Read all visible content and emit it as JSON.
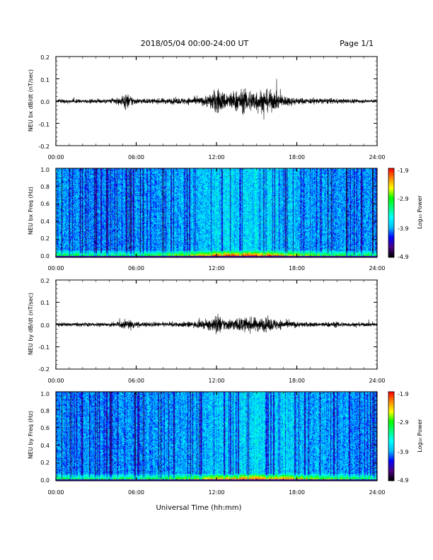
{
  "header": {
    "title": "2018/05/04  00:00-24:00 UT",
    "page": "Page 1/1"
  },
  "footer": {
    "xlabel": "Universal Time (hh:mm)"
  },
  "colors": {
    "trace": "#000000",
    "colormap": [
      "#000000",
      "#4b0082",
      "#0000ff",
      "#00bfff",
      "#00ffff",
      "#00ff7f",
      "#00ff00",
      "#ffff00",
      "#ff8c00",
      "#ff0000"
    ]
  },
  "chart_data": [
    {
      "type": "line",
      "ylabel": "NEU bx dB/dt (nT/sec)",
      "xlim": [
        "00:00",
        "24:00"
      ],
      "ylim": [
        -0.2,
        0.2
      ],
      "x_ticks": [
        "00:00",
        "06:00",
        "12:00",
        "18:00",
        "24:00"
      ],
      "y_ticks": [
        "0.2",
        "0.1",
        "0.0",
        "-0.1",
        "-0.2"
      ],
      "series": [
        {
          "x": [
            "00:00",
            "01:00",
            "02:00",
            "03:00",
            "04:00",
            "05:00",
            "05:15",
            "06:00",
            "07:00",
            "08:00",
            "09:00",
            "10:00",
            "11:00",
            "11:45",
            "12:00",
            "12:30",
            "13:00",
            "14:00",
            "15:00",
            "16:00",
            "17:00",
            "18:00",
            "19:00",
            "20:00",
            "21:00",
            "22:00",
            "23:00",
            "24:00"
          ],
          "amplitude": [
            0.008,
            0.008,
            0.008,
            0.009,
            0.01,
            0.02,
            0.035,
            0.012,
            0.01,
            0.012,
            0.013,
            0.015,
            0.018,
            0.04,
            0.06,
            0.04,
            0.04,
            0.05,
            0.05,
            0.045,
            0.025,
            0.015,
            0.012,
            0.012,
            0.01,
            0.01,
            0.008,
            0.008
          ]
        }
      ]
    },
    {
      "type": "heatmap",
      "ylabel": "NEU bx Freq (Hz)",
      "colorbar_label": "Log₁₀ Power",
      "xlim": [
        "00:00",
        "24:00"
      ],
      "ylim": [
        0.0,
        1.0
      ],
      "x_ticks": [
        "00:00",
        "06:00",
        "12:00",
        "18:00",
        "24:00"
      ],
      "y_ticks": [
        "1.0",
        "0.8",
        "0.6",
        "0.4",
        "0.2",
        "0.0"
      ],
      "color_range": [
        -4.9,
        -1.9
      ],
      "colorbar_ticks": [
        "-1.9",
        "-2.9",
        "-3.9",
        "-4.9"
      ],
      "low_freq_peak": {
        "freq_hz": 0.02,
        "max_log_power": -2.2,
        "peak_time": "14:00"
      }
    },
    {
      "type": "line",
      "ylabel": "NEU by dB/dt (nT/sec)",
      "xlim": [
        "00:00",
        "24:00"
      ],
      "ylim": [
        -0.2,
        0.2
      ],
      "x_ticks": [
        "00:00",
        "06:00",
        "12:00",
        "18:00",
        "24:00"
      ],
      "y_ticks": [
        "0.2",
        "0.1",
        "0.0",
        "-0.1",
        "-0.2"
      ],
      "series": [
        {
          "x": [
            "00:00",
            "01:00",
            "02:00",
            "03:00",
            "04:00",
            "05:00",
            "05:15",
            "06:00",
            "07:00",
            "08:00",
            "09:00",
            "10:00",
            "11:00",
            "11:45",
            "12:00",
            "12:30",
            "13:00",
            "14:00",
            "15:00",
            "16:00",
            "17:00",
            "18:00",
            "19:00",
            "20:00",
            "21:00",
            "22:00",
            "23:00",
            "24:00"
          ],
          "amplitude": [
            0.008,
            0.008,
            0.008,
            0.008,
            0.009,
            0.015,
            0.025,
            0.012,
            0.01,
            0.01,
            0.011,
            0.012,
            0.015,
            0.03,
            0.05,
            0.025,
            0.025,
            0.03,
            0.03,
            0.028,
            0.018,
            0.012,
            0.01,
            0.01,
            0.012,
            0.009,
            0.008,
            0.008
          ]
        }
      ]
    },
    {
      "type": "heatmap",
      "ylabel": "NEU by Freq (Hz)",
      "colorbar_label": "Log₁₀ Power",
      "xlim": [
        "00:00",
        "24:00"
      ],
      "ylim": [
        0.0,
        1.0
      ],
      "x_ticks": [
        "00:00",
        "06:00",
        "12:00",
        "18:00",
        "24:00"
      ],
      "y_ticks": [
        "1.0",
        "0.8",
        "0.6",
        "0.4",
        "0.2",
        "0.0"
      ],
      "color_range": [
        -4.9,
        -1.9
      ],
      "colorbar_ticks": [
        "-1.9",
        "-2.9",
        "-3.9",
        "-4.9"
      ],
      "low_freq_peak": {
        "freq_hz": 0.02,
        "max_log_power": -2.4,
        "peak_time": "15:00"
      }
    }
  ]
}
